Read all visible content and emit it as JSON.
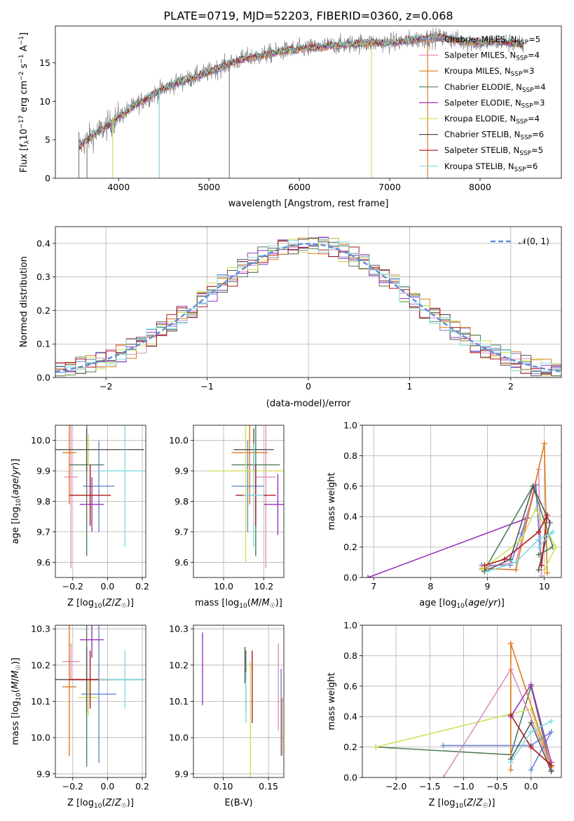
{
  "title": "PLATE=0719, MJD=52203, FIBERID=0360, z=0.068",
  "colors": {
    "Chabrier MILES": "#6a85d6",
    "Salpeter MILES": "#e08fc0",
    "Kroupa MILES": "#e07a1f",
    "Chabrier ELODIE": "#4f7f5a",
    "Salpeter ELODIE": "#9933bb",
    "Kroupa ELODIE": "#cde25a",
    "Chabrier STELIB": "#555555",
    "Salpeter STELIB": "#b01818",
    "Kroupa STELIB": "#7fdbe0",
    "data": "#808080",
    "gauss": "#5b8bdb"
  },
  "chart_data": [
    {
      "id": "spectrum",
      "type": "line",
      "xlabel": "wavelength [Angstrom, rest frame]",
      "ylabel": "Flux [f_λ10^-17 erg cm^-2 s^-1 A^-1]",
      "xlim": [
        3300,
        8900
      ],
      "ylim": [
        0,
        19.8
      ],
      "xticks": [
        4000,
        5000,
        6000,
        7000,
        8000
      ],
      "yticks": [
        0,
        5,
        10,
        15
      ],
      "legend_position": "upper-right",
      "legend": [
        {
          "label": "Chabrier MILES, N_SSP=5",
          "model": "Chabrier MILES"
        },
        {
          "label": "Salpeter MILES, N_SSP=4",
          "model": "Salpeter MILES"
        },
        {
          "label": "Kroupa MILES, N_SSP=3",
          "model": "Kroupa MILES"
        },
        {
          "label": "Chabrier ELODIE, N_SSP=4",
          "model": "Chabrier ELODIE"
        },
        {
          "label": "Salpeter ELODIE, N_SSP=3",
          "model": "Salpeter ELODIE"
        },
        {
          "label": "Kroupa ELODIE, N_SSP=4",
          "model": "Kroupa ELODIE"
        },
        {
          "label": "Chabrier STELIB, N_SSP=6",
          "model": "Chabrier STELIB"
        },
        {
          "label": "Salpeter STELIB, N_SSP=5",
          "model": "Salpeter STELIB"
        },
        {
          "label": "Kroupa STELIB, N_SSP=6",
          "model": "Kroupa STELIB"
        }
      ],
      "continuum": {
        "x": [
          3560,
          3700,
          3900,
          4000,
          4200,
          4400,
          4600,
          4800,
          5000,
          5200,
          5400,
          5600,
          5800,
          6000,
          6200,
          6400,
          6600,
          6800,
          7000,
          7200,
          7400,
          7600,
          7800,
          8000,
          8200,
          8400,
          8480
        ],
        "y": [
          4.0,
          5.5,
          7.0,
          8.0,
          9.6,
          11.0,
          12.2,
          13.0,
          13.8,
          14.8,
          15.6,
          16.0,
          16.5,
          16.8,
          17.0,
          17.3,
          17.5,
          17.6,
          17.6,
          17.9,
          18.2,
          18.3,
          17.8,
          17.6,
          17.8,
          17.5,
          17.3
        ]
      },
      "drops": [
        {
          "model": "data",
          "x": 3560,
          "top": 6.0
        },
        {
          "model": "data",
          "x": 3650,
          "top": 6.0
        },
        {
          "model": "Kroupa ELODIE",
          "x": 3935,
          "top": 8.0
        },
        {
          "model": "Kroupa STELIB",
          "x": 4450,
          "top": 11.5
        },
        {
          "model": "data",
          "x": 5225,
          "top": 15.0
        },
        {
          "model": "Kroupa ELODIE",
          "x": 6800,
          "top": 17.6
        },
        {
          "model": "Kroupa MILES",
          "x": 7420,
          "top": 18.2
        }
      ]
    },
    {
      "id": "residuals",
      "type": "histogram",
      "xlabel": "(data-model)/error",
      "ylabel": "Normed distribution",
      "xlim": [
        -2.5,
        2.5
      ],
      "ylim": [
        0,
        0.45
      ],
      "xticks": [
        -2,
        -1,
        0,
        1,
        2
      ],
      "yticks": [
        0.0,
        0.1,
        0.2,
        0.3,
        0.4
      ],
      "legend": [
        {
          "label": "𝒩(0, 1)",
          "model": "gauss"
        }
      ],
      "legend_position": "upper-right",
      "bin_width": 0.1,
      "bin_start": -2.5
    },
    {
      "id": "age_vs_Z",
      "type": "errorbar",
      "xlabel": "Z [log10(Z/Z☉)]",
      "ylabel": "age [log10(age/yr)]",
      "xlim": [
        -0.3,
        0.22
      ],
      "ylim": [
        9.55,
        10.05
      ],
      "xticks": [
        -0.2,
        0.0,
        0.2
      ],
      "yticks": [
        9.6,
        9.7,
        9.8,
        9.9,
        10.0
      ],
      "points": [
        {
          "model": "Chabrier MILES",
          "x": -0.05,
          "xerr": 0.09,
          "y": 9.85,
          "yerr": 0.15
        },
        {
          "model": "Salpeter MILES",
          "x": -0.21,
          "xerr": 0.04,
          "y": 9.88,
          "yerr": 0.3
        },
        {
          "model": "Kroupa MILES",
          "x": -0.22,
          "xerr": 0.04,
          "y": 9.96,
          "yerr": 0.17
        },
        {
          "model": "Chabrier ELODIE",
          "x": -0.12,
          "xerr": 0.1,
          "y": 9.92,
          "yerr": 0.3
        },
        {
          "model": "Salpeter ELODIE",
          "x": -0.09,
          "xerr": 0.07,
          "y": 9.79,
          "yerr": 0.09
        },
        {
          "model": "Kroupa ELODIE",
          "x": -0.11,
          "xerr": 0.06,
          "y": 9.97,
          "yerr": 0.05
        },
        {
          "model": "Chabrier STELIB",
          "x": -0.12,
          "xerr": 0.33,
          "y": 9.97,
          "yerr": 0.07
        },
        {
          "model": "Salpeter STELIB",
          "x": -0.1,
          "xerr": 0.12,
          "y": 9.82,
          "yerr": 0.1
        },
        {
          "model": "Kroupa STELIB",
          "x": 0.1,
          "xerr": 0.15,
          "y": 9.9,
          "yerr": 0.25
        }
      ]
    },
    {
      "id": "age_vs_mass",
      "type": "errorbar",
      "xlabel": "mass [log10(M/M☉)]",
      "ylabel": "",
      "xlim": [
        9.85,
        10.3
      ],
      "ylim": [
        9.55,
        10.05
      ],
      "xticks": [
        10.0,
        10.2
      ],
      "yticks": [
        9.6,
        9.7,
        9.8,
        9.9,
        10.0
      ],
      "points": [
        {
          "model": "Chabrier MILES",
          "x": 10.12,
          "xerr": 0.08,
          "y": 9.85,
          "yerr": 0.15
        },
        {
          "model": "Salpeter MILES",
          "x": 10.21,
          "xerr": 0.05,
          "y": 9.88,
          "yerr": 0.3
        },
        {
          "model": "Kroupa MILES",
          "x": 10.13,
          "xerr": 0.09,
          "y": 9.96,
          "yerr": 0.17
        },
        {
          "model": "Chabrier ELODIE",
          "x": 10.16,
          "xerr": 0.12,
          "y": 9.92,
          "yerr": 0.3
        },
        {
          "model": "Salpeter ELODIE",
          "x": 10.27,
          "xerr": 0.07,
          "y": 9.79,
          "yerr": 0.1
        },
        {
          "model": "Kroupa ELODIE",
          "x": 10.11,
          "xerr": 0.19,
          "y": 9.9,
          "yerr": 0.3
        },
        {
          "model": "Chabrier STELIB",
          "x": 10.15,
          "xerr": 0.1,
          "y": 9.97,
          "yerr": 0.07
        },
        {
          "model": "Salpeter STELIB",
          "x": 10.16,
          "xerr": 0.1,
          "y": 9.82,
          "yerr": 0.1
        },
        {
          "model": "Kroupa STELIB",
          "x": 10.15,
          "xerr": 0.05,
          "y": 9.82,
          "yerr": 0.17
        }
      ]
    },
    {
      "id": "weight_vs_age",
      "type": "line",
      "xlabel": "age [log10(age/yr)]",
      "ylabel": "mass weight",
      "xlim": [
        6.8,
        10.3
      ],
      "ylim": [
        0,
        1.0
      ],
      "xticks": [
        7,
        8,
        9,
        10
      ],
      "yticks": [
        0.0,
        0.2,
        0.4,
        0.6,
        0.8,
        1.0
      ],
      "series": [
        {
          "model": "Salpeter ELODIE",
          "x": [
            6.9,
            9.7,
            9.85,
            9.95
          ],
          "y": [
            0.0,
            0.39,
            0.61,
            0.05
          ]
        },
        {
          "model": "Chabrier MILES",
          "x": [
            8.9,
            9.4,
            9.6,
            9.85,
            9.95
          ],
          "y": [
            0.08,
            0.08,
            0.29,
            0.61,
            0.05
          ]
        },
        {
          "model": "Salpeter MILES",
          "x": [
            9.0,
            9.5,
            9.9,
            9.95
          ],
          "y": [
            0.07,
            0.1,
            0.71,
            0.01
          ]
        },
        {
          "model": "Kroupa MILES",
          "x": [
            8.9,
            9.5,
            10.0,
            10.05
          ],
          "y": [
            0.06,
            0.05,
            0.88,
            0.03
          ]
        },
        {
          "model": "Chabrier ELODIE",
          "x": [
            8.95,
            9.8,
            10.15,
            9.9
          ],
          "y": [
            0.05,
            0.6,
            0.2,
            0.15
          ]
        },
        {
          "model": "Kroupa ELODIE",
          "x": [
            8.9,
            9.6,
            9.85,
            10.2,
            10.0
          ],
          "y": [
            0.05,
            0.25,
            0.45,
            0.2,
            0.05
          ]
        },
        {
          "model": "Chabrier STELIB",
          "x": [
            8.95,
            9.4,
            9.8,
            10.1,
            9.9
          ],
          "y": [
            0.04,
            0.12,
            0.6,
            0.36,
            0.05
          ]
        },
        {
          "model": "Salpeter STELIB",
          "x": [
            8.95,
            9.3,
            9.9,
            10.05,
            9.95
          ],
          "y": [
            0.08,
            0.12,
            0.3,
            0.41,
            0.08
          ]
        },
        {
          "model": "Kroupa STELIB",
          "x": [
            9.0,
            9.5,
            9.9,
            10.15,
            9.9
          ],
          "y": [
            0.04,
            0.1,
            0.25,
            0.3,
            0.2
          ]
        }
      ]
    },
    {
      "id": "mass_vs_Z",
      "type": "errorbar",
      "xlabel": "Z [log10(Z/Z☉)]",
      "ylabel": "mass [log10(M/M☉)]",
      "xlim": [
        -0.3,
        0.22
      ],
      "ylim": [
        9.89,
        10.31
      ],
      "xticks": [
        -0.2,
        0.0,
        0.2
      ],
      "yticks": [
        9.9,
        10.0,
        10.1,
        10.2,
        10.3
      ],
      "points": [
        {
          "model": "Chabrier MILES",
          "x": -0.05,
          "xerr": 0.1,
          "y": 10.12,
          "yerr": 0.19
        },
        {
          "model": "Salpeter MILES",
          "x": -0.21,
          "xerr": 0.05,
          "y": 10.21,
          "yerr": 0.05
        },
        {
          "model": "Kroupa MILES",
          "x": -0.22,
          "xerr": 0.04,
          "y": 10.14,
          "yerr": 0.19
        },
        {
          "model": "Chabrier ELODIE",
          "x": -0.12,
          "xerr": 0.1,
          "y": 10.16,
          "yerr": 0.24
        },
        {
          "model": "Salpeter ELODIE",
          "x": -0.09,
          "xerr": 0.07,
          "y": 10.27,
          "yerr": 0.05
        },
        {
          "model": "Kroupa ELODIE",
          "x": -0.11,
          "xerr": 0.06,
          "y": 10.11,
          "yerr": 0.05
        },
        {
          "model": "Chabrier STELIB",
          "x": -0.12,
          "xerr": 0.33,
          "y": 10.16,
          "yerr": 0.09
        },
        {
          "model": "Salpeter STELIB",
          "x": -0.1,
          "xerr": 0.12,
          "y": 10.16,
          "yerr": 0.08
        },
        {
          "model": "Kroupa STELIB",
          "x": 0.1,
          "xerr": 0.15,
          "y": 10.16,
          "yerr": 0.08
        }
      ]
    },
    {
      "id": "mass_vs_ebv",
      "type": "errorbar",
      "xlabel": "E(B-V)",
      "ylabel": "",
      "xlim": [
        0.067,
        0.167
      ],
      "ylim": [
        9.89,
        10.31
      ],
      "xticks": [
        0.1,
        0.15
      ],
      "yticks": [
        9.9,
        10.0,
        10.1,
        10.2,
        10.3
      ],
      "points": [
        {
          "model": "Chabrier MILES",
          "x": 0.164,
          "xerr": 0,
          "y": 10.07,
          "yerr": 0.12
        },
        {
          "model": "Salpeter MILES",
          "x": 0.161,
          "xerr": 0,
          "y": 10.14,
          "yerr": 0.12
        },
        {
          "model": "Kroupa MILES",
          "x": 0.165,
          "xerr": 0,
          "y": 10.03,
          "yerr": 0.08
        },
        {
          "model": "Chabrier ELODIE",
          "x": 0.125,
          "xerr": 0,
          "y": 10.16,
          "yerr": 0.08
        },
        {
          "model": "Salpeter ELODIE",
          "x": 0.077,
          "xerr": 0,
          "y": 10.19,
          "yerr": 0.1
        },
        {
          "model": "Kroupa ELODIE",
          "x": 0.13,
          "xerr": 0,
          "y": 10.05,
          "yerr": 0.16
        },
        {
          "model": "Chabrier STELIB",
          "x": 0.124,
          "xerr": 0,
          "y": 10.2,
          "yerr": 0.05
        },
        {
          "model": "Salpeter STELIB",
          "x": 0.132,
          "xerr": 0,
          "y": 10.14,
          "yerr": 0.1
        },
        {
          "model": "Kroupa STELIB",
          "x": 0.125,
          "xerr": 0,
          "y": 10.11,
          "yerr": 0.07
        }
      ]
    },
    {
      "id": "weight_vs_Z",
      "type": "line",
      "xlabel": "Z [log10(Z/Z☉)]",
      "ylabel": "mass weight",
      "xlim": [
        -2.5,
        0.45
      ],
      "ylim": [
        0,
        1.0
      ],
      "xticks": [
        -2.0,
        -1.5,
        -1.0,
        -0.5,
        0.0
      ],
      "yticks": [
        0.0,
        0.2,
        0.4,
        0.6,
        0.8,
        1.0
      ],
      "series": [
        {
          "model": "Chabrier ELODIE",
          "x": [
            -2.3,
            -0.3,
            0.0,
            0.3
          ],
          "y": [
            0.2,
            0.15,
            0.6,
            0.05
          ]
        },
        {
          "model": "Kroupa ELODIE",
          "x": [
            -2.3,
            0.0,
            0.3
          ],
          "y": [
            0.2,
            0.45,
            0.04
          ]
        },
        {
          "model": "Salpeter MILES",
          "x": [
            -1.3,
            -0.3,
            0.3
          ],
          "y": [
            0.0,
            0.71,
            0.07
          ]
        },
        {
          "model": "Chabrier MILES",
          "x": [
            -1.3,
            0.0,
            0.3,
            0.0
          ],
          "y": [
            0.21,
            0.21,
            0.3,
            0.05
          ]
        },
        {
          "model": "Kroupa MILES",
          "x": [
            -0.3,
            -0.3,
            0.3
          ],
          "y": [
            0.05,
            0.88,
            0.07
          ]
        },
        {
          "model": "Salpeter ELODIE",
          "x": [
            -0.3,
            0.0,
            0.3
          ],
          "y": [
            0.4,
            0.61,
            0.1
          ]
        },
        {
          "model": "Chabrier STELIB",
          "x": [
            -0.3,
            0.0,
            0.3
          ],
          "y": [
            0.12,
            0.36,
            0.04
          ]
        },
        {
          "model": "Salpeter STELIB",
          "x": [
            -0.3,
            0.0,
            0.3
          ],
          "y": [
            0.41,
            0.2,
            0.08
          ]
        },
        {
          "model": "Kroupa STELIB",
          "x": [
            -0.3,
            0.0,
            0.3
          ],
          "y": [
            0.1,
            0.3,
            0.37
          ]
        }
      ]
    }
  ]
}
